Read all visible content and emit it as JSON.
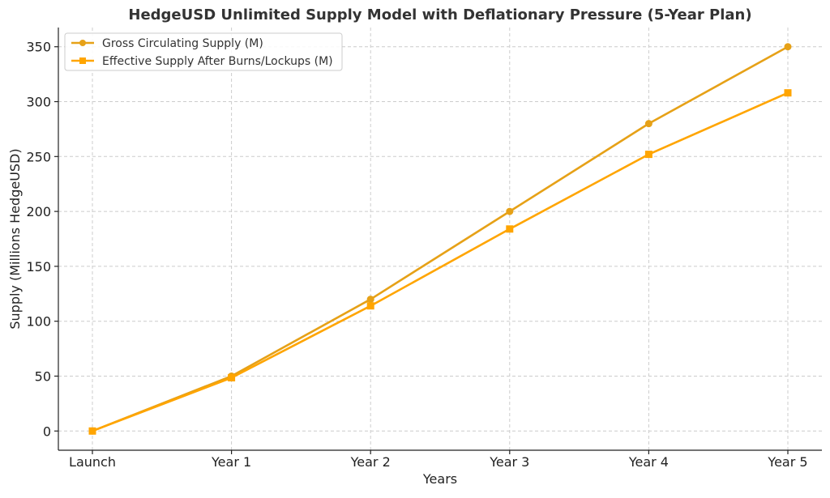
{
  "chart_data": {
    "type": "line",
    "title": "HedgeUSD Unlimited Supply Model with Deflationary Pressure (5-Year Plan)",
    "xlabel": "Years",
    "ylabel": "Supply (Millions HedgeUSD)",
    "categories": [
      "Launch",
      "Year 1",
      "Year 2",
      "Year 3",
      "Year 4",
      "Year 5"
    ],
    "ylim": [
      -17.5,
      367.5
    ],
    "yticks": [
      0,
      50,
      100,
      150,
      200,
      250,
      300,
      350
    ],
    "grid": true,
    "legend_position": "top-left",
    "series": [
      {
        "name": "Gross Circulating Supply (M)",
        "values": [
          0,
          50,
          120,
          200,
          280,
          350
        ],
        "color": "#e6a117",
        "marker": "circle"
      },
      {
        "name": "Effective Supply After Burns/Lockups (M)",
        "values": [
          0,
          48.5,
          114,
          184,
          252,
          308
        ],
        "color": "#ffa500",
        "marker": "square"
      }
    ]
  }
}
